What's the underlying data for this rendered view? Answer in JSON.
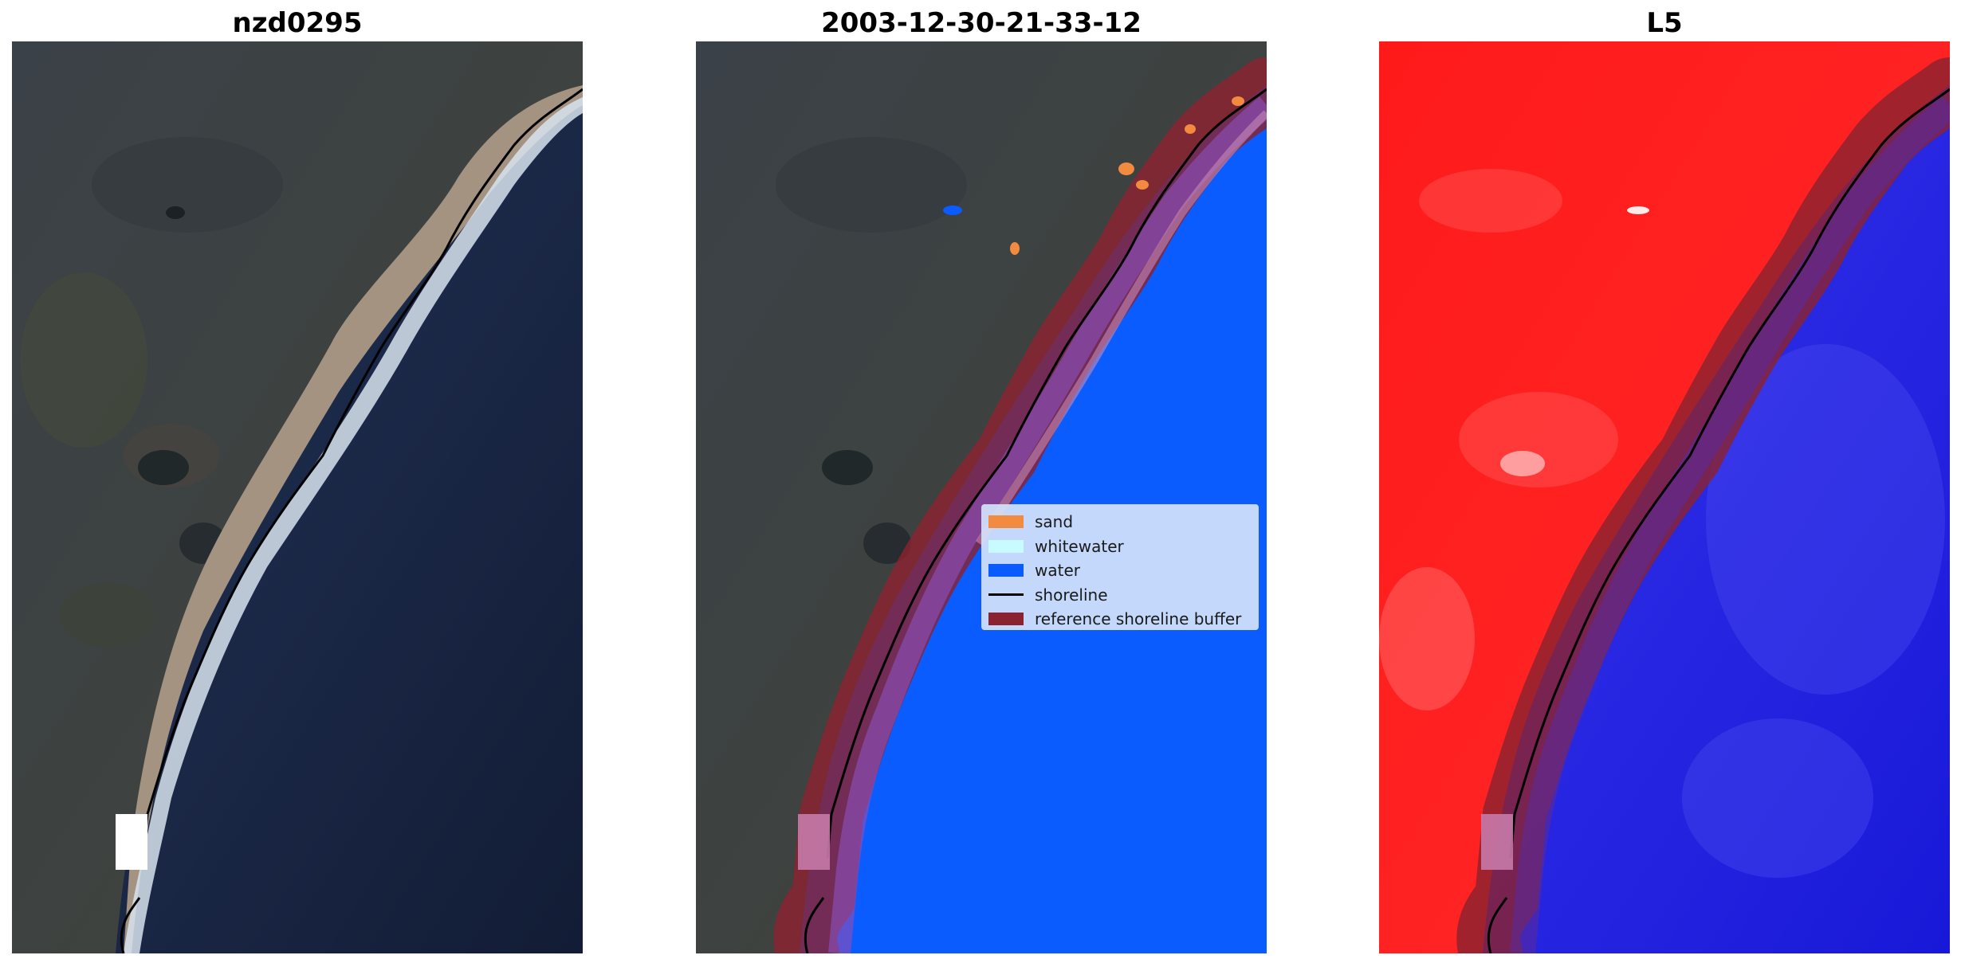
{
  "panels": [
    {
      "title": "nzd0295"
    },
    {
      "title": "2003-12-30-21-33-12"
    },
    {
      "title": "L5"
    }
  ],
  "legend": {
    "items": [
      {
        "label": "sand",
        "color": "#f28a40",
        "kind": "patch"
      },
      {
        "label": "whitewater",
        "color": "#c8fbff",
        "kind": "patch"
      },
      {
        "label": "water",
        "color": "#0a5cff",
        "kind": "patch"
      },
      {
        "label": "shoreline",
        "color": "#000000",
        "kind": "line"
      },
      {
        "label": "reference shoreline buffer",
        "color": "#8b2230",
        "kind": "patch"
      }
    ]
  },
  "colors": {
    "land": "#3a4040",
    "ocean": "#16233f",
    "water_class": "#0a5cff",
    "buffer": "#8b2230",
    "index_land": "#ff1818",
    "index_water": "#2222ee"
  }
}
